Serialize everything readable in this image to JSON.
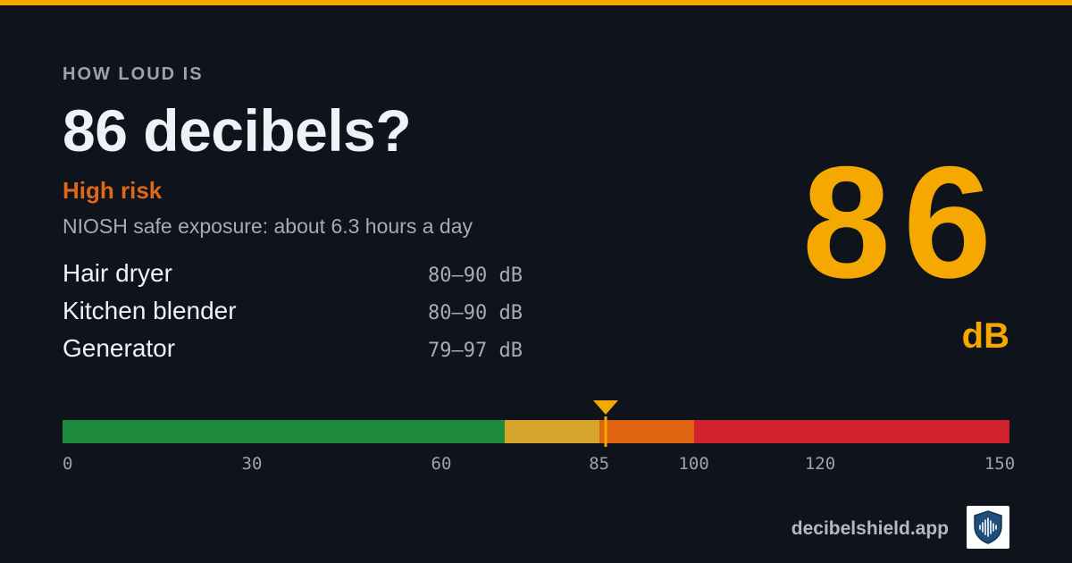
{
  "header": {
    "eyebrow": "HOW LOUD IS",
    "headline": "86 decibels?",
    "risk_label": "High risk",
    "exposure_text": "NIOSH safe exposure: about 6.3 hours a day"
  },
  "examples": [
    {
      "name": "Hair dryer",
      "range": "80–90 dB"
    },
    {
      "name": "Kitchen blender",
      "range": "80–90 dB"
    },
    {
      "name": "Generator",
      "range": "79–97 dB"
    }
  ],
  "level": {
    "value": "86",
    "unit": "dB",
    "numeric": 86
  },
  "scale": {
    "min": 0,
    "max": 150,
    "bands": [
      {
        "from": 0,
        "to": 70,
        "color": "#1e8a3c"
      },
      {
        "from": 70,
        "to": 85,
        "color": "#d6a42b"
      },
      {
        "from": 85,
        "to": 100,
        "color": "#e0640f"
      },
      {
        "from": 100,
        "to": 150,
        "color": "#d0222e"
      }
    ],
    "ticks": [
      "0",
      "30",
      "60",
      "85",
      "100",
      "120",
      "150"
    ],
    "marker_value": 86
  },
  "footer": {
    "url": "decibelshield.app",
    "logo_icon": "shield-sound-wave-icon"
  },
  "colors": {
    "accent": "#f5a800",
    "risk": "#e0661a",
    "background": "#0f131b"
  }
}
